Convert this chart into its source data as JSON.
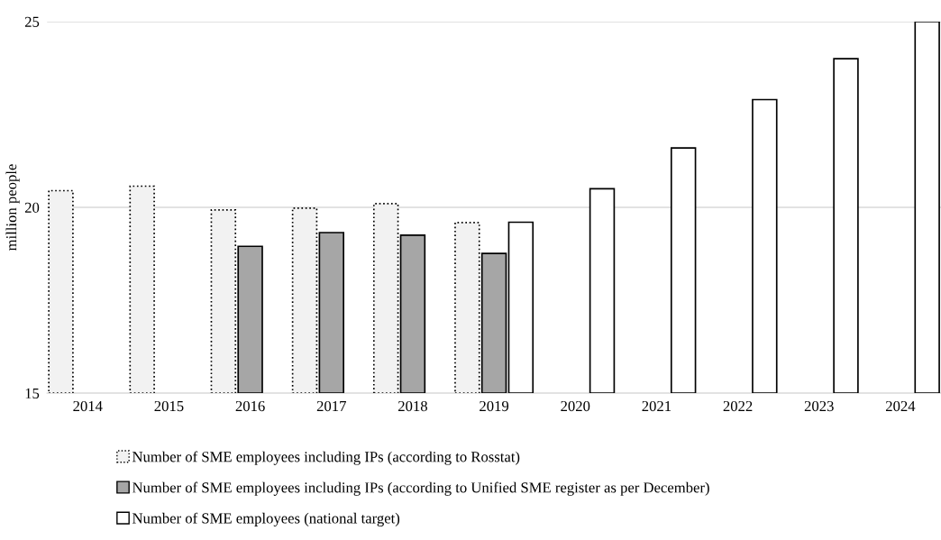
{
  "chart_data": {
    "type": "bar",
    "ylabel": "million people",
    "categories": [
      "2014",
      "2015",
      "2016",
      "2017",
      "2018",
      "2019",
      "2020",
      "2021",
      "2022",
      "2023",
      "2024"
    ],
    "series": [
      {
        "name": "Number of SME employees including IPs (according to Rosstat)",
        "color": "#f2f2f2",
        "line_style": "dotted",
        "values": [
          20.45,
          20.57,
          19.93,
          19.98,
          20.1,
          19.59,
          null,
          null,
          null,
          null,
          null
        ]
      },
      {
        "name": "Number of SME employees including IPs (according to Unified SME register as per December)",
        "color": "#a6a6a6",
        "line_style": "solid",
        "values": [
          null,
          null,
          18.95,
          19.32,
          19.25,
          18.76,
          null,
          null,
          null,
          null,
          null
        ]
      },
      {
        "name": "Number of SME employees (national target)",
        "color": "#ffffff",
        "line_style": "solid",
        "values": [
          null,
          null,
          null,
          null,
          null,
          19.6,
          20.5,
          21.6,
          22.9,
          24.0,
          25.0
        ]
      }
    ],
    "ylim": [
      15,
      25
    ],
    "yticks": [
      15,
      20,
      25
    ],
    "grid": "y",
    "legend": "bottom"
  }
}
